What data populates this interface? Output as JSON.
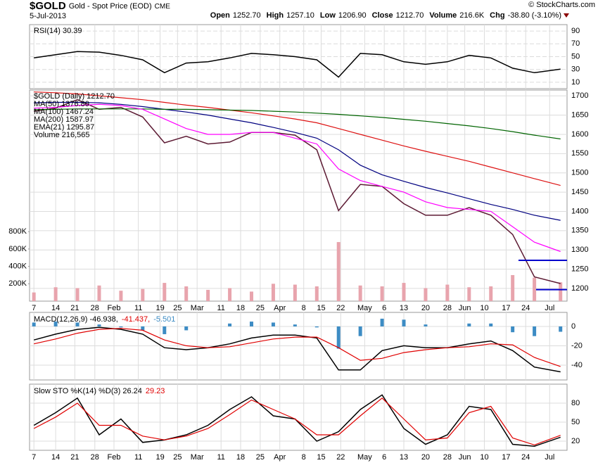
{
  "header": {
    "symbol": "$GOLD",
    "name": "Gold - Spot Price (EOD)",
    "exchange": "CME",
    "date": "5-Jul-2013",
    "credit": "© StockCharts.com",
    "quote": [
      {
        "label": "Open",
        "value": "1252.70"
      },
      {
        "label": "High",
        "value": "1257.10"
      },
      {
        "label": "Low",
        "value": "1206.90"
      },
      {
        "label": "Close",
        "value": "1212.70"
      },
      {
        "label": "Volume",
        "value": "216.6K"
      },
      {
        "label": "Chg",
        "value": "-38.80 (-3.10%)"
      }
    ]
  },
  "chart_data": [
    {
      "type": "line",
      "legend_layout": "column",
      "x": [
        0,
        5,
        10,
        15,
        20,
        25,
        30,
        35,
        40,
        45,
        50,
        55,
        60,
        65,
        70,
        75,
        80,
        85,
        90,
        95,
        100,
        105,
        110,
        115,
        121
      ],
      "xlim": [
        -1,
        122.5
      ],
      "ylim": [
        0,
        100
      ],
      "yticks": [
        10,
        30,
        50,
        70,
        90
      ],
      "grid": true,
      "series": [
        {
          "name": "RSI(14) 30.39",
          "color": "#000000",
          "values": [
            48,
            53,
            58,
            57,
            52,
            45,
            25,
            40,
            42,
            48,
            55,
            53,
            50,
            45,
            18,
            55,
            53,
            42,
            38,
            42,
            52,
            48,
            32,
            25,
            30.39
          ]
        }
      ]
    },
    {
      "type": "line",
      "legend_layout": "column",
      "x": [
        0,
        5,
        10,
        15,
        20,
        25,
        30,
        35,
        40,
        45,
        50,
        55,
        60,
        65,
        70,
        75,
        80,
        85,
        90,
        95,
        100,
        105,
        110,
        115,
        121
      ],
      "xlim": [
        -1,
        122.5
      ],
      "xticks": [
        {
          "value": 0,
          "label": "7"
        },
        {
          "value": 5,
          "label": "14"
        },
        {
          "value": 9.4,
          "label": "21"
        },
        {
          "value": 14,
          "label": "28"
        },
        {
          "value": 18.4,
          "label": "Feb"
        },
        {
          "value": 24,
          "label": "11"
        },
        {
          "value": 29,
          "label": "19"
        },
        {
          "value": 33,
          "label": "25"
        },
        {
          "value": 37.5,
          "label": "Mar"
        },
        {
          "value": 43,
          "label": "11"
        },
        {
          "value": 47.5,
          "label": "18"
        },
        {
          "value": 52,
          "label": "25"
        },
        {
          "value": 56.5,
          "label": "Apr"
        },
        {
          "value": 62,
          "label": "8"
        },
        {
          "value": 66,
          "label": "15"
        },
        {
          "value": 70.5,
          "label": "22"
        },
        {
          "value": 76,
          "label": "May"
        },
        {
          "value": 80.5,
          "label": "6"
        },
        {
          "value": 85,
          "label": "13"
        },
        {
          "value": 90,
          "label": "20"
        },
        {
          "value": 95,
          "label": "28"
        },
        {
          "value": 99,
          "label": "Jun"
        },
        {
          "value": 103.5,
          "label": "10"
        },
        {
          "value": 108.5,
          "label": "17"
        },
        {
          "value": 113,
          "label": "24"
        },
        {
          "value": 118.5,
          "label": "Jul"
        }
      ],
      "ylim": [
        1167,
        1715
      ],
      "yticks": [
        1200,
        1250,
        1300,
        1350,
        1400,
        1450,
        1500,
        1550,
        1600,
        1650,
        1700
      ],
      "grid": true,
      "y2lim": [
        0,
        2430000
      ],
      "y2ticks": [
        {
          "value": 200000,
          "label": "200K"
        },
        {
          "value": 400000,
          "label": "400K"
        },
        {
          "value": 600000,
          "label": "600K"
        },
        {
          "value": 800000,
          "label": "800K"
        }
      ],
      "hlines": [
        1273,
        1197
      ],
      "hline_color": "#0000cc",
      "series": [
        {
          "name": "$GOLD (Daily) 1212.70",
          "color": "#5c1a33",
          "values": [
            1660,
            1668,
            1690,
            1665,
            1670,
            1645,
            1578,
            1595,
            1575,
            1580,
            1605,
            1605,
            1598,
            1560,
            1402,
            1470,
            1465,
            1420,
            1390,
            1390,
            1410,
            1390,
            1340,
            1230,
            1212.7
          ]
        },
        {
          "name": "MA(50) 1376.80",
          "color": "#000080",
          "values": [
            1682,
            1683,
            1683,
            1682,
            1678,
            1672,
            1665,
            1658,
            1650,
            1640,
            1630,
            1618,
            1605,
            1590,
            1560,
            1520,
            1495,
            1478,
            1462,
            1448,
            1433,
            1418,
            1405,
            1390,
            1376.8
          ]
        },
        {
          "name": "MA(100) 1467.24",
          "color": "#dd1111",
          "values": [
            1710,
            1708,
            1705,
            1700,
            1695,
            1690,
            1683,
            1676,
            1670,
            1663,
            1656,
            1648,
            1640,
            1630,
            1615,
            1600,
            1585,
            1570,
            1556,
            1543,
            1530,
            1515,
            1500,
            1485,
            1467.24
          ]
        },
        {
          "name": "MA(200) 1587.97",
          "color": "#006400",
          "values": [
            1664,
            1665,
            1666,
            1666,
            1666,
            1666,
            1665,
            1665,
            1664,
            1663,
            1662,
            1660,
            1658,
            1655,
            1652,
            1648,
            1644,
            1639,
            1634,
            1628,
            1622,
            1615,
            1607,
            1598,
            1587.97
          ]
        },
        {
          "name": "EMA(21) 1295.87",
          "color": "#ff00ff",
          "values": [
            1668,
            1670,
            1675,
            1678,
            1675,
            1665,
            1640,
            1615,
            1600,
            1600,
            1605,
            1605,
            1590,
            1575,
            1510,
            1480,
            1465,
            1450,
            1425,
            1410,
            1405,
            1400,
            1360,
            1320,
            1295.87
          ]
        },
        {
          "name": "Volume 216,565",
          "color": "#e8a4ad",
          "type": "bar",
          "axis": "y2",
          "values": [
            100000,
            160000,
            150000,
            180000,
            120000,
            140000,
            210000,
            170000,
            130000,
            150000,
            110000,
            200000,
            190000,
            170000,
            680000,
            180000,
            170000,
            210000,
            150000,
            190000,
            160000,
            170000,
            300000,
            270000,
            216565
          ]
        }
      ]
    },
    {
      "type": "line",
      "legend_layout": "row",
      "x": [
        0,
        5,
        10,
        15,
        20,
        25,
        30,
        35,
        40,
        45,
        50,
        55,
        60,
        65,
        70,
        75,
        80,
        85,
        90,
        95,
        100,
        105,
        110,
        115,
        121
      ],
      "xlim": [
        -1,
        122.5
      ],
      "ylim": [
        -55.3,
        14.5
      ],
      "yticks": [
        -40,
        -20,
        0
      ],
      "grid": true,
      "series": [
        {
          "name": "MACD(12,26,9) -46.938,",
          "color": "#000000",
          "values": [
            -14,
            -8,
            -3,
            -1,
            -3,
            -8,
            -22,
            -24,
            -22,
            -18,
            -12,
            -9,
            -9,
            -12,
            -45,
            -45,
            -25,
            -20,
            -22,
            -22,
            -18,
            -15,
            -25,
            -42,
            -46.938
          ]
        },
        {
          "name": "-41.437,",
          "color": "#e00000",
          "values": [
            -18,
            -13,
            -7,
            -3,
            -2,
            -4,
            -14,
            -20,
            -22,
            -21,
            -17,
            -13,
            -11,
            -11,
            -22,
            -35,
            -33,
            -27,
            -24,
            -22,
            -21,
            -18,
            -19,
            -32,
            -41.437
          ]
        },
        {
          "name": "-5.501",
          "color": "#3d8cc4",
          "type": "bar",
          "values": [
            4,
            5,
            4,
            2,
            -1,
            -4,
            -8,
            -4,
            0,
            3,
            5,
            4,
            2,
            -1,
            -23,
            -10,
            8,
            7,
            2,
            0,
            3,
            3,
            -6,
            -10,
            -5.501
          ]
        }
      ]
    },
    {
      "type": "line",
      "legend_layout": "row",
      "x": [
        0,
        5,
        10,
        15,
        20,
        25,
        30,
        35,
        40,
        45,
        50,
        55,
        60,
        65,
        70,
        75,
        80,
        85,
        90,
        95,
        100,
        105,
        110,
        115,
        121
      ],
      "xlim": [
        -1,
        122.5
      ],
      "xticks": [
        {
          "value": 0,
          "label": "7"
        },
        {
          "value": 5,
          "label": "14"
        },
        {
          "value": 9.4,
          "label": "21"
        },
        {
          "value": 14,
          "label": "28"
        },
        {
          "value": 18.4,
          "label": "Feb"
        },
        {
          "value": 24,
          "label": "11"
        },
        {
          "value": 29,
          "label": "19"
        },
        {
          "value": 33,
          "label": "25"
        },
        {
          "value": 37.5,
          "label": "Mar"
        },
        {
          "value": 43,
          "label": "11"
        },
        {
          "value": 47.5,
          "label": "18"
        },
        {
          "value": 52,
          "label": "25"
        },
        {
          "value": 56.5,
          "label": "Apr"
        },
        {
          "value": 62,
          "label": "8"
        },
        {
          "value": 66,
          "label": "15"
        },
        {
          "value": 70.5,
          "label": "22"
        },
        {
          "value": 76,
          "label": "May"
        },
        {
          "value": 80.5,
          "label": "6"
        },
        {
          "value": 85,
          "label": "13"
        },
        {
          "value": 90,
          "label": "20"
        },
        {
          "value": 95,
          "label": "28"
        },
        {
          "value": 99,
          "label": "Jun"
        },
        {
          "value": 103.5,
          "label": "10"
        },
        {
          "value": 108.5,
          "label": "17"
        },
        {
          "value": 113,
          "label": "24"
        },
        {
          "value": 118.5,
          "label": "Jul"
        }
      ],
      "ylim": [
        5.6,
        110
      ],
      "yticks": [
        20,
        50,
        80
      ],
      "grid": true,
      "series": [
        {
          "name": "Slow STO %K(14) %D(3) 26.24",
          "color": "#000000",
          "values": [
            45,
            65,
            88,
            30,
            55,
            18,
            22,
            30,
            45,
            70,
            90,
            60,
            55,
            20,
            35,
            70,
            93,
            40,
            15,
            30,
            75,
            70,
            15,
            12,
            26.24
          ]
        },
        {
          "name": "29.23",
          "color": "#e00000",
          "values": [
            40,
            58,
            80,
            45,
            45,
            28,
            22,
            28,
            40,
            62,
            85,
            70,
            55,
            30,
            30,
            60,
            88,
            55,
            22,
            25,
            65,
            75,
            25,
            14,
            29.23
          ]
        }
      ]
    }
  ]
}
